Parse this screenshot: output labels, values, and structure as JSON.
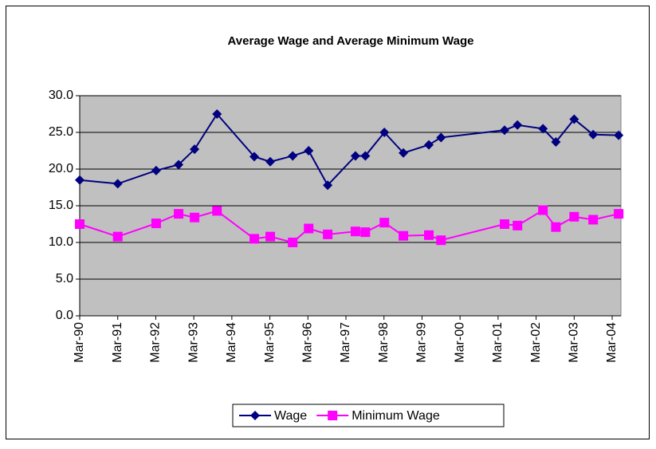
{
  "chart_data": {
    "type": "line",
    "title": "Average Wage and Average Minimum Wage",
    "x": [
      1990.17,
      1991.17,
      1992.18,
      1992.77,
      1993.19,
      1993.78,
      1994.76,
      1995.18,
      1995.77,
      1996.19,
      1996.69,
      1997.42,
      1997.68,
      1998.18,
      1998.68,
      1999.35,
      1999.67,
      2001.34,
      2001.68,
      2002.35,
      2002.69,
      2003.17,
      2003.67,
      2004.34
    ],
    "series": [
      {
        "name": "Wage",
        "color": "#000080",
        "marker": "diamond",
        "values": [
          18.5,
          18.0,
          19.8,
          20.6,
          22.7,
          27.5,
          21.7,
          21.0,
          21.8,
          22.5,
          17.8,
          21.8,
          21.8,
          25.0,
          22.2,
          23.3,
          24.3,
          25.3,
          26.0,
          25.5,
          23.7,
          26.8,
          24.7,
          24.6
        ]
      },
      {
        "name": "Minimum Wage",
        "color": "#ff00ff",
        "marker": "square",
        "values": [
          12.5,
          10.8,
          12.6,
          13.9,
          13.4,
          14.3,
          10.5,
          10.8,
          10.0,
          11.9,
          11.1,
          11.5,
          11.4,
          12.7,
          10.9,
          11.0,
          10.3,
          12.5,
          12.3,
          14.4,
          12.1,
          13.5,
          13.1,
          13.9
        ]
      }
    ],
    "xlim": [
      1990.17,
      2004.4
    ],
    "xticks": [
      {
        "value": 1990.17,
        "label": "Mar-90"
      },
      {
        "value": 1991.17,
        "label": "Mar-91"
      },
      {
        "value": 1992.17,
        "label": "Mar-92"
      },
      {
        "value": 1993.17,
        "label": "Mar-93"
      },
      {
        "value": 1994.17,
        "label": "Mar-94"
      },
      {
        "value": 1995.17,
        "label": "Mar-95"
      },
      {
        "value": 1996.17,
        "label": "Mar-96"
      },
      {
        "value": 1997.17,
        "label": "Mar-97"
      },
      {
        "value": 1998.17,
        "label": "Mar-98"
      },
      {
        "value": 1999.17,
        "label": "Mar-99"
      },
      {
        "value": 2000.17,
        "label": "Mar-00"
      },
      {
        "value": 2001.17,
        "label": "Mar-01"
      },
      {
        "value": 2002.17,
        "label": "Mar-02"
      },
      {
        "value": 2003.17,
        "label": "Mar-03"
      },
      {
        "value": 2004.17,
        "label": "Mar-04"
      }
    ],
    "ylim": [
      0,
      30
    ],
    "yticks": [
      {
        "value": 0,
        "label": "0.0"
      },
      {
        "value": 5,
        "label": "5.0"
      },
      {
        "value": 10,
        "label": "10.0"
      },
      {
        "value": 15,
        "label": "15.0"
      },
      {
        "value": 20,
        "label": "20.0"
      },
      {
        "value": 25,
        "label": "25.0"
      },
      {
        "value": 30,
        "label": "30.0"
      }
    ],
    "grid": true,
    "legend": "bottom",
    "plot_background": "#c0c0c0"
  }
}
